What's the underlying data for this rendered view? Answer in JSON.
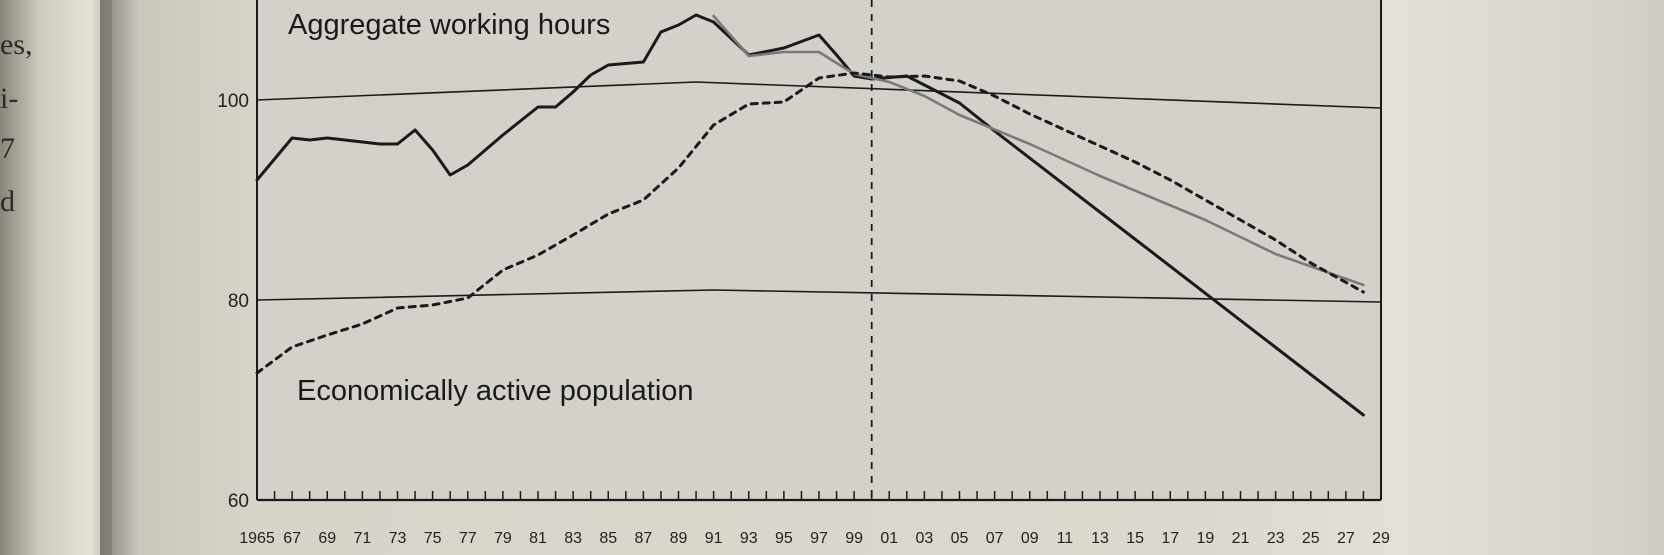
{
  "left_page_fragments": [
    "es,",
    "i-",
    "7",
    "d"
  ],
  "chart_data": {
    "type": "line",
    "x_tick_labels": [
      "1965",
      "67",
      "69",
      "71",
      "73",
      "75",
      "77",
      "79",
      "81",
      "83",
      "85",
      "87",
      "89",
      "91",
      "93",
      "95",
      "97",
      "99",
      "01",
      "03",
      "05",
      "07",
      "09",
      "11",
      "13",
      "15",
      "17",
      "19",
      "21",
      "23",
      "25",
      "27",
      "29"
    ],
    "y_ticks": [
      60,
      80,
      100
    ],
    "ylim": [
      60,
      110
    ],
    "xlim": [
      1965,
      2029
    ],
    "divider_x": 2000,
    "reference_lines": [
      {
        "name": "ref-100",
        "points": [
          [
            1965,
            100
          ],
          [
            1990,
            101.8
          ],
          [
            2029,
            99.2
          ]
        ]
      },
      {
        "name": "ref-80",
        "points": [
          [
            1965,
            80
          ],
          [
            1991,
            81
          ],
          [
            2029,
            79.8
          ]
        ]
      }
    ],
    "series": [
      {
        "name": "Aggregate working hours",
        "style": "solid-bold",
        "color": "#1a1a1a",
        "points": [
          [
            1965,
            92
          ],
          [
            1967,
            96.2
          ],
          [
            1968,
            96
          ],
          [
            1969,
            96.2
          ],
          [
            1971,
            95.8
          ],
          [
            1972,
            95.6
          ],
          [
            1973,
            95.6
          ],
          [
            1974,
            97
          ],
          [
            1975,
            95
          ],
          [
            1976,
            92.5
          ],
          [
            1977,
            93.5
          ],
          [
            1979,
            96.5
          ],
          [
            1981,
            99.3
          ],
          [
            1982,
            99.3
          ],
          [
            1983,
            100.8
          ],
          [
            1984,
            102.5
          ],
          [
            1985,
            103.5
          ],
          [
            1987,
            103.8
          ],
          [
            1988,
            106.8
          ],
          [
            1989,
            107.5
          ],
          [
            1990,
            108.5
          ],
          [
            1991,
            107.8
          ],
          [
            1993,
            104.5
          ],
          [
            1995,
            105.2
          ],
          [
            1997,
            106.5
          ],
          [
            1998,
            104.5
          ],
          [
            1999,
            102.4
          ],
          [
            2000,
            102.1
          ],
          [
            2002,
            102.4
          ],
          [
            2003,
            101.5
          ],
          [
            2005,
            99.7
          ],
          [
            2007,
            96.9
          ],
          [
            2028,
            68.5
          ]
        ]
      },
      {
        "name": "",
        "style": "solid-gray",
        "color": "#7a7a7a",
        "points": [
          [
            1991,
            108.4
          ],
          [
            1993,
            104.4
          ],
          [
            1995,
            104.8
          ],
          [
            1997,
            104.8
          ],
          [
            1999,
            102.6
          ],
          [
            2001,
            101.8
          ],
          [
            2003,
            100.4
          ],
          [
            2005,
            98.5
          ],
          [
            2009,
            95.6
          ],
          [
            2013,
            92.4
          ],
          [
            2019,
            88
          ],
          [
            2023,
            84.6
          ],
          [
            2028,
            81.5
          ]
        ]
      },
      {
        "name": "Economically active population",
        "style": "dashed",
        "color": "#1a1a1a",
        "points": [
          [
            1965,
            72.7
          ],
          [
            1967,
            75.3
          ],
          [
            1969,
            76.5
          ],
          [
            1971,
            77.6
          ],
          [
            1973,
            79.2
          ],
          [
            1975,
            79.5
          ],
          [
            1977,
            80.2
          ],
          [
            1979,
            83
          ],
          [
            1981,
            84.5
          ],
          [
            1983,
            86.5
          ],
          [
            1985,
            88.6
          ],
          [
            1987,
            90
          ],
          [
            1989,
            93.2
          ],
          [
            1991,
            97.5
          ],
          [
            1993,
            99.6
          ],
          [
            1995,
            99.8
          ],
          [
            1997,
            102.2
          ],
          [
            1999,
            102.7
          ],
          [
            2001,
            102.3
          ],
          [
            2003,
            102.4
          ],
          [
            2005,
            101.9
          ],
          [
            2007,
            100.4
          ],
          [
            2009,
            98.6
          ],
          [
            2011,
            97
          ],
          [
            2013,
            95.4
          ],
          [
            2015,
            93.8
          ],
          [
            2017,
            92
          ],
          [
            2019,
            90
          ],
          [
            2021,
            88
          ],
          [
            2023,
            86
          ],
          [
            2025,
            83.7
          ],
          [
            2028,
            80.8
          ]
        ]
      }
    ]
  }
}
